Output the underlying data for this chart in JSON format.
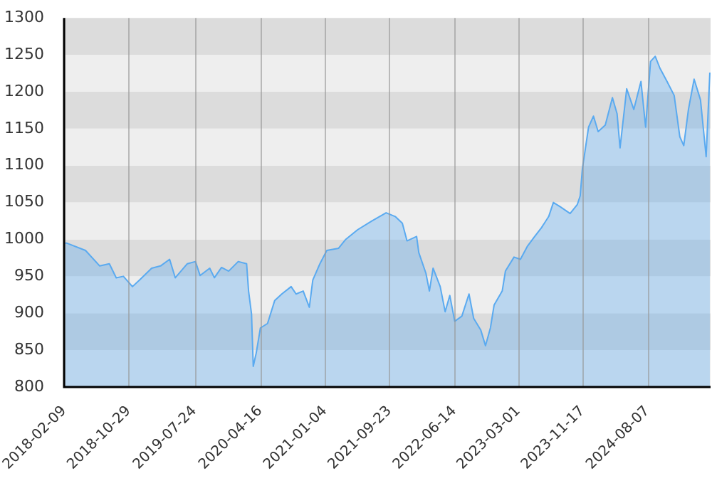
{
  "chart_data": {
    "type": "area",
    "color": "#5aaaf0",
    "x": [
      "2018-02-09",
      "2018-02-19",
      "2018-05-07",
      "2018-07-04",
      "2018-08-12",
      "2018-09-09",
      "2018-10-08",
      "2018-11-14",
      "2018-12-13",
      "2019-01-31",
      "2019-03-08",
      "2019-04-14",
      "2019-05-07",
      "2019-06-25",
      "2019-07-28",
      "2019-08-16",
      "2019-09-24",
      "2019-10-13",
      "2019-11-11",
      "2019-12-10",
      "2020-01-18",
      "2020-02-21",
      "2020-02-29",
      "2020-03-12",
      "2020-03-19",
      "2020-03-31",
      "2020-04-17",
      "2020-05-16",
      "2020-06-14",
      "2020-07-13",
      "2020-08-20",
      "2020-09-09",
      "2020-10-08",
      "2020-11-02",
      "2020-11-16",
      "2020-12-15",
      "2021-01-12",
      "2021-03-01",
      "2021-03-30",
      "2021-05-17",
      "2021-07-14",
      "2021-09-10",
      "2021-10-17",
      "2021-11-15",
      "2021-12-04",
      "2022-01-12",
      "2022-01-21",
      "2022-02-19",
      "2022-03-05",
      "2022-03-20",
      "2022-04-18",
      "2022-05-08",
      "2022-05-27",
      "2022-06-16",
      "2022-07-15",
      "2022-08-13",
      "2022-09-01",
      "2022-09-30",
      "2022-10-19",
      "2022-11-08",
      "2022-11-23",
      "2022-12-26",
      "2023-01-08",
      "2023-02-12",
      "2023-03-10",
      "2023-04-08",
      "2023-05-07",
      "2023-06-04",
      "2023-07-03",
      "2023-07-22",
      "2023-08-20",
      "2023-09-28",
      "2023-10-27",
      "2023-11-08",
      "2023-11-17",
      "2023-12-12",
      "2024-01-01",
      "2024-01-20",
      "2024-02-18",
      "2024-03-18",
      "2024-04-06",
      "2024-04-18",
      "2024-05-15",
      "2024-06-13",
      "2024-07-12",
      "2024-07-31",
      "2024-08-20",
      "2024-09-08",
      "2024-09-27",
      "2024-10-26",
      "2024-11-24",
      "2024-12-17",
      "2025-01-02",
      "2025-01-21",
      "2025-02-13",
      "2025-03-11",
      "2025-04-03",
      "2025-04-18"
    ],
    "values": [
      995,
      995,
      985,
      964,
      967,
      948,
      950,
      936,
      945,
      961,
      964,
      973,
      948,
      967,
      970,
      951,
      961,
      948,
      962,
      957,
      970,
      967,
      930,
      899,
      828,
      846,
      880,
      886,
      917,
      926,
      936,
      926,
      930,
      908,
      945,
      967,
      985,
      988,
      1000,
      1013,
      1025,
      1036,
      1031,
      1022,
      998,
      1004,
      982,
      954,
      930,
      961,
      936,
      902,
      924,
      889,
      896,
      926,
      893,
      877,
      856,
      880,
      911,
      930,
      957,
      976,
      973,
      991,
      1004,
      1016,
      1031,
      1050,
      1044,
      1035,
      1047,
      1059,
      1096,
      1152,
      1167,
      1146,
      1155,
      1192,
      1170,
      1124,
      1204,
      1176,
      1214,
      1152,
      1241,
      1248,
      1232,
      1214,
      1195,
      1139,
      1127,
      1176,
      1217,
      1189,
      1112,
      1226
    ],
    "xlim": [
      "2018-02-09",
      "2025-04-21"
    ],
    "xticks": [
      "2018-02-09",
      "2018-10-29",
      "2019-07-24",
      "2020-04-16",
      "2021-01-04",
      "2021-09-23",
      "2022-06-14",
      "2023-03-01",
      "2023-11-17",
      "2024-08-07"
    ],
    "ylim": [
      800,
      1300
    ],
    "yticks": [
      800,
      850,
      900,
      950,
      1000,
      1050,
      1100,
      1150,
      1200,
      1250,
      1300
    ],
    "grid": true,
    "legend": false,
    "marker": "none",
    "line_style": "solid"
  }
}
